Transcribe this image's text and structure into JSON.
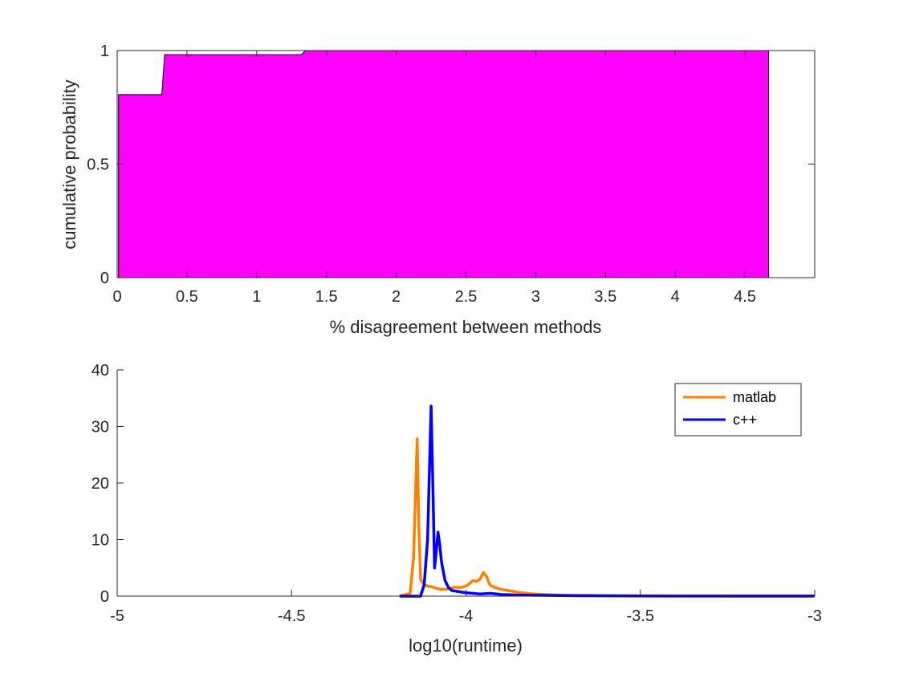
{
  "chart_data": [
    {
      "type": "area",
      "title": "",
      "xlabel": "% disagreement between methods",
      "ylabel": "cumulative probability",
      "xlim": [
        0,
        5
      ],
      "ylim": [
        0,
        1
      ],
      "xticks": [
        0,
        0.5,
        1,
        1.5,
        2,
        2.5,
        3,
        3.5,
        4,
        4.5
      ],
      "xtick_labels": [
        "0",
        "0.5",
        "1",
        "1.5",
        "2",
        "2.5",
        "3",
        "3.5",
        "4",
        "4.5"
      ],
      "yticks": [
        0,
        0.5,
        1
      ],
      "ytick_labels": [
        "0",
        "0.5",
        "1"
      ],
      "grid": false,
      "fill_color": "#ff00ff",
      "series": [
        {
          "x": [
            0.01,
            0.01,
            0.32,
            0.34,
            1.32,
            1.35,
            4.67,
            4.67
          ],
          "y": [
            0,
            0.806,
            0.806,
            0.982,
            0.982,
            1.0,
            1.0,
            0
          ]
        }
      ]
    },
    {
      "type": "line",
      "title": "",
      "xlabel": "log10(runtime)",
      "ylabel": "",
      "xlim": [
        -5,
        -3
      ],
      "ylim": [
        0,
        40
      ],
      "xticks": [
        -5,
        -4.5,
        -4,
        -3.5,
        -3
      ],
      "xtick_labels": [
        "-5",
        "-4.5",
        "-4",
        "-3.5",
        "-3"
      ],
      "yticks": [
        0,
        10,
        20,
        30,
        40
      ],
      "ytick_labels": [
        "0",
        "10",
        "20",
        "30",
        "40"
      ],
      "grid": false,
      "legend_position": "top-right",
      "series": [
        {
          "name": "matlab",
          "color": "#ff8000",
          "x": [
            -4.19,
            -4.16,
            -4.15,
            -4.14,
            -4.135,
            -4.13,
            -4.12,
            -4.11,
            -4.1,
            -4.09,
            -4.08,
            -4.07,
            -4.06,
            -4.05,
            -4.04,
            -4.03,
            -4.02,
            -4.01,
            -4.0,
            -3.99,
            -3.98,
            -3.97,
            -3.96,
            -3.95,
            -3.94,
            -3.935,
            -3.93,
            -3.92,
            -3.91,
            -3.9,
            -3.88,
            -3.86,
            -3.84,
            -3.82,
            -3.8,
            -3.75,
            -3.7,
            -3.6,
            -3.5,
            -3.4,
            -3.2,
            -3.0
          ],
          "y": [
            0,
            0.5,
            7,
            27.8,
            12,
            3,
            2,
            1.8,
            1.7,
            1.5,
            1.3,
            1.2,
            1.2,
            1.3,
            1.5,
            1.6,
            1.5,
            1.6,
            1.8,
            2.2,
            2.8,
            2.6,
            3.0,
            4.2,
            3.4,
            2.5,
            1.9,
            1.6,
            1.4,
            1.2,
            1.0,
            0.8,
            0.6,
            0.45,
            0.35,
            0.22,
            0.15,
            0.1,
            0.06,
            0.04,
            0.02,
            0.02
          ]
        },
        {
          "name": "c++",
          "color": "#0000ff",
          "x": [
            -4.19,
            -4.13,
            -4.12,
            -4.11,
            -4.1,
            -4.095,
            -4.09,
            -4.085,
            -4.08,
            -4.075,
            -4.07,
            -4.06,
            -4.05,
            -4.04,
            -4.02,
            -4.0,
            -3.98,
            -3.96,
            -3.93,
            -3.9,
            -3.85,
            -3.8,
            -3.7,
            -3.6,
            -3.5,
            -3.4,
            -3.2,
            -3.0
          ],
          "y": [
            0,
            0,
            2,
            10,
            33.6,
            20,
            5,
            8,
            11.3,
            9,
            6,
            2.8,
            1.5,
            1.0,
            0.8,
            0.6,
            0.5,
            0.4,
            0.5,
            0.3,
            0.2,
            0.15,
            0.08,
            0.05,
            0.03,
            0.02,
            0.02,
            0.02
          ]
        }
      ]
    }
  ]
}
